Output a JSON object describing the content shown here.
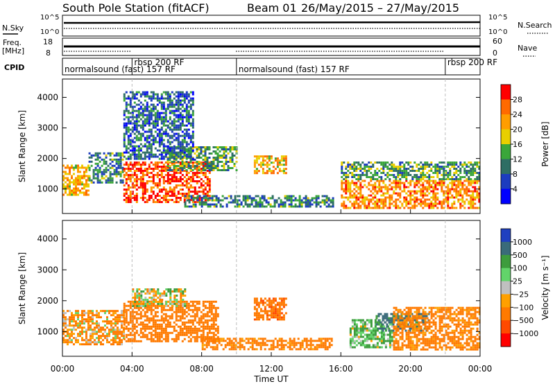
{
  "title": {
    "station": "South Pole Station (fitACF)",
    "beam": "Beam 01",
    "dates": "26/May/2015 – 27/May/2015"
  },
  "top_panels": {
    "nsky_label": "N.Sky",
    "nsearch_label": "N.Search",
    "noise_ticks_left": [
      "10^5",
      "10^0"
    ],
    "noise_ticks_right": [
      "10^5",
      "10^0"
    ],
    "freq_label_1": "Freq.",
    "freq_label_2": "[MHz]",
    "freq_ticks": [
      "18",
      "8"
    ],
    "nave_label": "Nave",
    "nave_ticks": [
      "60",
      "0"
    ],
    "cpid_label": "CPID",
    "cpid_segments": [
      {
        "label": "normalsound (fast) 157 RF",
        "start_hour": 0.0,
        "end_hour": 4.0
      },
      {
        "label": "rbsp 200 RF",
        "start_hour": 4.0,
        "end_hour": 10.0
      },
      {
        "label": "normalsound (fast) 157 RF",
        "start_hour": 10.0,
        "end_hour": 22.0
      },
      {
        "label": "rbsp 200 RF",
        "start_hour": 22.0,
        "end_hour": 24.0
      }
    ]
  },
  "chart_data": [
    {
      "type": "heatmap",
      "name": "power",
      "ylabel": "Slant Range [km]",
      "ylim": [
        200,
        4600
      ],
      "yticks": [
        "1000",
        "2000",
        "3000",
        "4000"
      ],
      "colorbar_label": "Power [dB]",
      "colorbar_ticks": [
        "28",
        "24",
        "20",
        "16",
        "12",
        "8",
        "4"
      ],
      "colorbar_range": [
        0,
        30
      ],
      "colorbar_colors": [
        "#ff0000",
        "#ff6a00",
        "#ff9d00",
        "#e8cf00",
        "#3aa63a",
        "#2e6e64",
        "#1c3cbf",
        "#0000ff"
      ],
      "regions": [
        {
          "x": [
            0.0,
            1.5
          ],
          "y": [
            800,
            1800
          ],
          "value": 20
        },
        {
          "x": [
            1.5,
            3.5
          ],
          "y": [
            1200,
            2200
          ],
          "value": 10
        },
        {
          "x": [
            3.5,
            8.5
          ],
          "y": [
            600,
            1900
          ],
          "value": 26
        },
        {
          "x": [
            6.0,
            10.0
          ],
          "y": [
            1600,
            2400
          ],
          "value": 12
        },
        {
          "x": [
            3.5,
            7.5
          ],
          "y": [
            2000,
            4200
          ],
          "value": 8
        },
        {
          "x": [
            11.0,
            12.8
          ],
          "y": [
            1500,
            2100
          ],
          "value": 20
        },
        {
          "x": [
            7.0,
            15.5
          ],
          "y": [
            400,
            800
          ],
          "value": 10
        },
        {
          "x": [
            16.0,
            24.0
          ],
          "y": [
            400,
            1300
          ],
          "value": 22
        },
        {
          "x": [
            16.0,
            24.0
          ],
          "y": [
            1300,
            1900
          ],
          "value": 12
        }
      ]
    },
    {
      "type": "heatmap",
      "name": "velocity",
      "ylabel": "Slant Range [km]",
      "ylim": [
        200,
        4600
      ],
      "yticks": [
        "1000",
        "2000",
        "3000",
        "4000"
      ],
      "colorbar_label": "Velocity [m s⁻¹]",
      "colorbar_ticks": [
        "1000",
        "500",
        "100",
        "25",
        "−25",
        "−100",
        "−500",
        "−1000"
      ],
      "colorbar_colors": [
        "#2040c0",
        "#3a6b7a",
        "#3d9c3d",
        "#62d46a",
        "#c0c0c0",
        "#ffa000",
        "#ff7a00",
        "#ff4a00",
        "#ff0000"
      ],
      "regions": [
        {
          "x": [
            0.0,
            3.5
          ],
          "y": [
            600,
            1700
          ],
          "value": -100
        },
        {
          "x": [
            3.5,
            9.0
          ],
          "y": [
            700,
            2000
          ],
          "value": -300
        },
        {
          "x": [
            4.0,
            7.0
          ],
          "y": [
            1800,
            2400
          ],
          "value": 0
        },
        {
          "x": [
            11.0,
            12.8
          ],
          "y": [
            1400,
            2100
          ],
          "value": -400
        },
        {
          "x": [
            8.0,
            15.5
          ],
          "y": [
            400,
            800
          ],
          "value": -200
        },
        {
          "x": [
            16.5,
            19.0
          ],
          "y": [
            500,
            1400
          ],
          "value": 100
        },
        {
          "x": [
            18.0,
            21.0
          ],
          "y": [
            1000,
            1600
          ],
          "value": 600
        },
        {
          "x": [
            19.0,
            24.0
          ],
          "y": [
            400,
            1800
          ],
          "value": -200
        }
      ]
    }
  ],
  "x_axis": {
    "ticks": [
      "00:00",
      "04:00",
      "08:00",
      "12:00",
      "16:00",
      "20:00",
      "00:00"
    ],
    "xlabel": "Time UT",
    "xlim_hours": [
      0,
      24
    ]
  }
}
